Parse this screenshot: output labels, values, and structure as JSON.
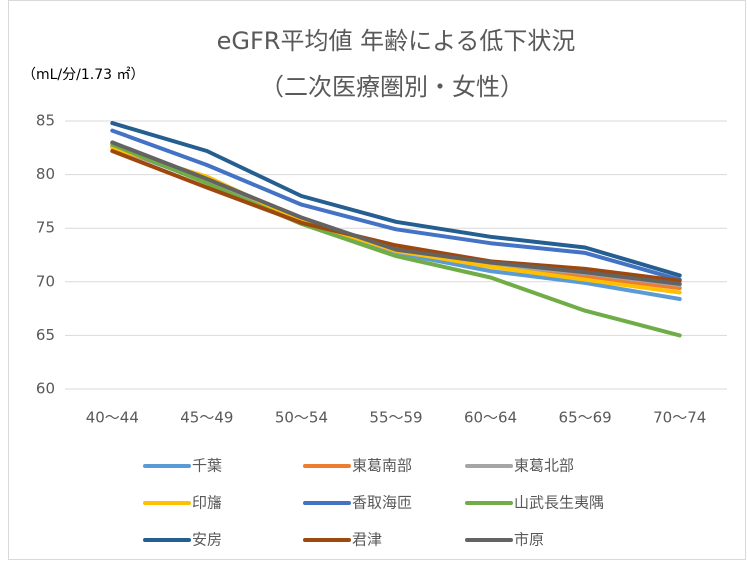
{
  "chart_data": {
    "type": "line",
    "title": "eGFR平均値 年齢による低下状況",
    "subtitle": "（二次医療圏別・女性）",
    "y_label": "（mL/分/1.73 ㎡）",
    "categories": [
      "40～44",
      "45～49",
      "50～54",
      "55～59",
      "60～64",
      "65～69",
      "70～74"
    ],
    "ylim": [
      60,
      85
    ],
    "yticks": [
      60,
      65,
      70,
      75,
      80,
      85
    ],
    "grid": true,
    "series": [
      {
        "name": "千葉",
        "color": "#5b9bd5",
        "values": [
          82.6,
          79.3,
          75.6,
          72.7,
          71.0,
          69.9,
          68.4
        ]
      },
      {
        "name": "東葛南部",
        "color": "#ed7d31",
        "values": [
          82.6,
          79.4,
          75.8,
          73.1,
          71.5,
          70.5,
          69.4
        ]
      },
      {
        "name": "東葛北部",
        "color": "#a5a5a5",
        "values": [
          82.9,
          79.5,
          75.9,
          72.8,
          71.6,
          70.8,
          69.7
        ]
      },
      {
        "name": "印旛",
        "color": "#ffc000",
        "values": [
          82.5,
          79.8,
          75.7,
          72.9,
          71.4,
          70.2,
          69.0
        ]
      },
      {
        "name": "香取海匝",
        "color": "#4472c4",
        "values": [
          84.1,
          80.9,
          77.2,
          74.9,
          73.6,
          72.7,
          70.2
        ]
      },
      {
        "name": "山武長生夷隅",
        "color": "#70ad47",
        "values": [
          82.8,
          79.2,
          75.4,
          72.4,
          70.4,
          67.3,
          65.0
        ]
      },
      {
        "name": "安房",
        "color": "#255e91",
        "values": [
          84.8,
          82.2,
          78.0,
          75.6,
          74.2,
          73.2,
          70.6
        ]
      },
      {
        "name": "君津",
        "color": "#9e480e",
        "values": [
          82.2,
          78.8,
          75.5,
          73.4,
          71.9,
          71.2,
          70.1
        ]
      },
      {
        "name": "市原",
        "color": "#636363",
        "values": [
          83.0,
          79.6,
          76.0,
          73.0,
          71.8,
          70.9,
          69.8
        ]
      }
    ]
  }
}
